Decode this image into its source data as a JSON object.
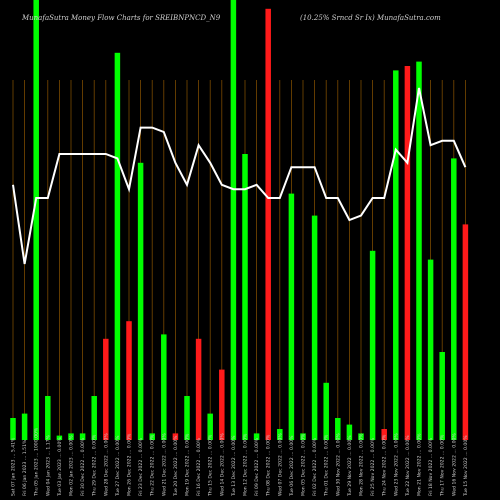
{
  "chart_data": {
    "type": "bar",
    "title": "MunafaSutra  Money Flow  Charts for SREIBNPNCD_N9",
    "subtitle": "(10.25% Srncd Sr Ix) MunafaSutra.com",
    "colors": {
      "up": "#00ff00",
      "down": "#ff1a1a",
      "line": "#ffffff",
      "grid": "#7a4a00",
      "background": "#000000"
    },
    "ylim": [
      0,
      100
    ],
    "categories": [
      "Sat 07 Jan 2023 ... 5.41%",
      "Fri 06 Jan 2023 ... 1.51%",
      "Thu 05 Jan 2023 ... 1000.00%",
      "Wed 04 Jan 2023 ... 1.17%",
      "Tue 03 Jan 2023 ... 0.00%",
      "Mon 02 Jan 2023 ... 0.00%",
      "Fri 30 Dec 2022 ... 0.00%",
      "Thu 29 Dec 2022 ... 0.00%",
      "Wed 28 Dec 2022 ... 0.00%",
      "Tue 27 Dec 2022 ... 0.00%",
      "Mon 26 Dec 2022 ... 0.00%",
      "Fri 23 Dec 2022 ... 0.00%",
      "Thu 22 Dec 2022 ... 0.00%",
      "Wed 21 Dec 2022 ... 0.00%",
      "Tue 20 Dec 2022 ... 0.00%",
      "Mon 19 Dec 2022 ... 0.00%",
      "Fri 16 Dec 2022 ... 0.00%",
      "Thu 15 Dec 2022 ... 0.00%",
      "Wed 14 Dec 2022 ... 0.00%",
      "Tue 13 Dec 2022 ... 0.00%",
      "Mon 12 Dec 2022 ... 0.00%",
      "Fri 09 Dec 2022 ... 0.00%",
      "Thu 08 Dec 2022 ... 0.00%",
      "Wed 07 Dec 2022 ... 0.00%",
      "Tue 06 Dec 2022 ... 0.00%",
      "Mon 05 Dec 2022 ... 0.00%",
      "Fri 02 Dec 2022 ... 0.00%",
      "Thu 01 Dec 2022 ... 0.00%",
      "Wed 30 Nov 2022 ... 0.00%",
      "Tue 29 Nov 2022 ... 0.00%",
      "Mon 28 Nov 2022 ... 0.00%",
      "Fri 25 Nov 2022 ... 0.00%",
      "Thu 24 Nov 2022 ... 0.00%",
      "Wed 23 Nov 2022 ... 0.00%",
      "Tue 22 Nov 2022 ... 0.00%",
      "Mon 21 Nov 2022 ... 0.00%",
      "Fri 18 Nov 2022 ... 0.00%",
      "Thu 17 Nov 2022 ... 0.00%",
      "Wed 16 Nov 2022 ... 0.00%",
      "Tue 15 Nov 2022 ... 0.00%"
    ],
    "bars": [
      {
        "value": 5,
        "dir": "up"
      },
      {
        "value": 6,
        "dir": "up"
      },
      {
        "value": 100,
        "dir": "up"
      },
      {
        "value": 10,
        "dir": "up"
      },
      {
        "value": 1,
        "dir": "up"
      },
      {
        "value": 1.5,
        "dir": "up"
      },
      {
        "value": 1.5,
        "dir": "up"
      },
      {
        "value": 10,
        "dir": "up"
      },
      {
        "value": 23,
        "dir": "down"
      },
      {
        "value": 88,
        "dir": "up"
      },
      {
        "value": 27,
        "dir": "down"
      },
      {
        "value": 63,
        "dir": "up"
      },
      {
        "value": 1.5,
        "dir": "up"
      },
      {
        "value": 24,
        "dir": "up"
      },
      {
        "value": 1.5,
        "dir": "down"
      },
      {
        "value": 10,
        "dir": "up"
      },
      {
        "value": 23,
        "dir": "down"
      },
      {
        "value": 6,
        "dir": "up"
      },
      {
        "value": 16,
        "dir": "down"
      },
      {
        "value": 100,
        "dir": "up"
      },
      {
        "value": 65,
        "dir": "up"
      },
      {
        "value": 1.5,
        "dir": "up"
      },
      {
        "value": 98,
        "dir": "down"
      },
      {
        "value": 2.5,
        "dir": "up"
      },
      {
        "value": 56,
        "dir": "up"
      },
      {
        "value": 1.5,
        "dir": "up"
      },
      {
        "value": 51,
        "dir": "up"
      },
      {
        "value": 13,
        "dir": "up"
      },
      {
        "value": 5,
        "dir": "up"
      },
      {
        "value": 3.5,
        "dir": "up"
      },
      {
        "value": 1.5,
        "dir": "up"
      },
      {
        "value": 43,
        "dir": "up"
      },
      {
        "value": 2.5,
        "dir": "down"
      },
      {
        "value": 84,
        "dir": "up"
      },
      {
        "value": 85,
        "dir": "down"
      },
      {
        "value": 86,
        "dir": "up"
      },
      {
        "value": 41,
        "dir": "up"
      },
      {
        "value": 20,
        "dir": "up"
      },
      {
        "value": 64,
        "dir": "up"
      },
      {
        "value": 49,
        "dir": "down"
      }
    ],
    "line": [
      {
        "x": 0,
        "y": 58
      },
      {
        "x": 1,
        "y": 40
      },
      {
        "x": 2,
        "y": 55
      },
      {
        "x": 3,
        "y": 55
      },
      {
        "x": 4,
        "y": 65
      },
      {
        "x": 5,
        "y": 65
      },
      {
        "x": 6,
        "y": 65
      },
      {
        "x": 7,
        "y": 65
      },
      {
        "x": 8,
        "y": 65
      },
      {
        "x": 9,
        "y": 64
      },
      {
        "x": 10,
        "y": 57
      },
      {
        "x": 11,
        "y": 71
      },
      {
        "x": 12,
        "y": 71
      },
      {
        "x": 13,
        "y": 70
      },
      {
        "x": 14,
        "y": 63
      },
      {
        "x": 15,
        "y": 58
      },
      {
        "x": 16,
        "y": 67
      },
      {
        "x": 17,
        "y": 63
      },
      {
        "x": 18,
        "y": 58
      },
      {
        "x": 19,
        "y": 57
      },
      {
        "x": 20,
        "y": 57
      },
      {
        "x": 21,
        "y": 58
      },
      {
        "x": 22,
        "y": 55
      },
      {
        "x": 23,
        "y": 55
      },
      {
        "x": 24,
        "y": 62
      },
      {
        "x": 25,
        "y": 62
      },
      {
        "x": 26,
        "y": 62
      },
      {
        "x": 27,
        "y": 55
      },
      {
        "x": 28,
        "y": 55
      },
      {
        "x": 29,
        "y": 50
      },
      {
        "x": 30,
        "y": 51
      },
      {
        "x": 31,
        "y": 55
      },
      {
        "x": 32,
        "y": 55
      },
      {
        "x": 33,
        "y": 66
      },
      {
        "x": 34,
        "y": 63
      },
      {
        "x": 35,
        "y": 80
      },
      {
        "x": 36,
        "y": 67
      },
      {
        "x": 37,
        "y": 68
      },
      {
        "x": 38,
        "y": 68
      },
      {
        "x": 39,
        "y": 62
      }
    ]
  }
}
